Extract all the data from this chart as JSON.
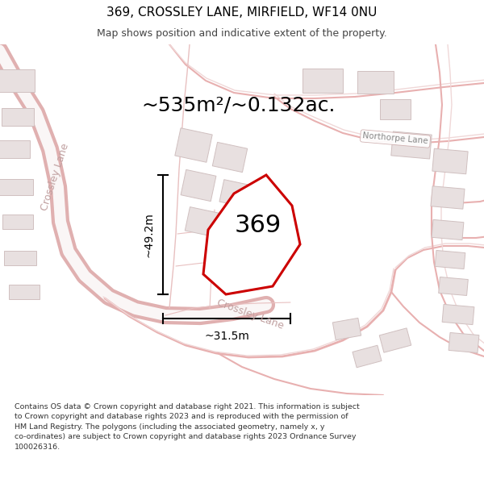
{
  "title": "369, CROSSLEY LANE, MIRFIELD, WF14 0NU",
  "subtitle": "Map shows position and indicative extent of the property.",
  "area_label": "~535m²/~0.132ac.",
  "property_number": "369",
  "dim_vertical": "~49.2m",
  "dim_horizontal": "~31.5m",
  "street_label_left": "Crossley Lane",
  "street_label_diag": "Crossley Lane",
  "street_label_right": "Northorpe Lane",
  "footer_text": "Contains OS data © Crown copyright and database right 2021. This information is subject to Crown copyright and database rights 2023 and is reproduced with the permission of HM Land Registry. The polygons (including the associated geometry, namely x, y co-ordinates) are subject to Crown copyright and database rights 2023 Ordnance Survey 100026316.",
  "bg_color": "#ffffff",
  "map_bg": "#ffffff",
  "road_color": "#e8b0b0",
  "road_fill": "#fdf5f5",
  "building_color": "#e8e0e0",
  "building_edge": "#d0c0c0",
  "property_color": "#cc0000",
  "property_fill": "#ffffff",
  "dim_color": "#000000",
  "text_color": "#000000",
  "street_text_color": "#c0a0a0",
  "title_fontsize": 11,
  "subtitle_fontsize": 9,
  "area_fontsize": 18,
  "property_num_fontsize": 22,
  "dim_fontsize": 10,
  "street_fontsize": 9
}
